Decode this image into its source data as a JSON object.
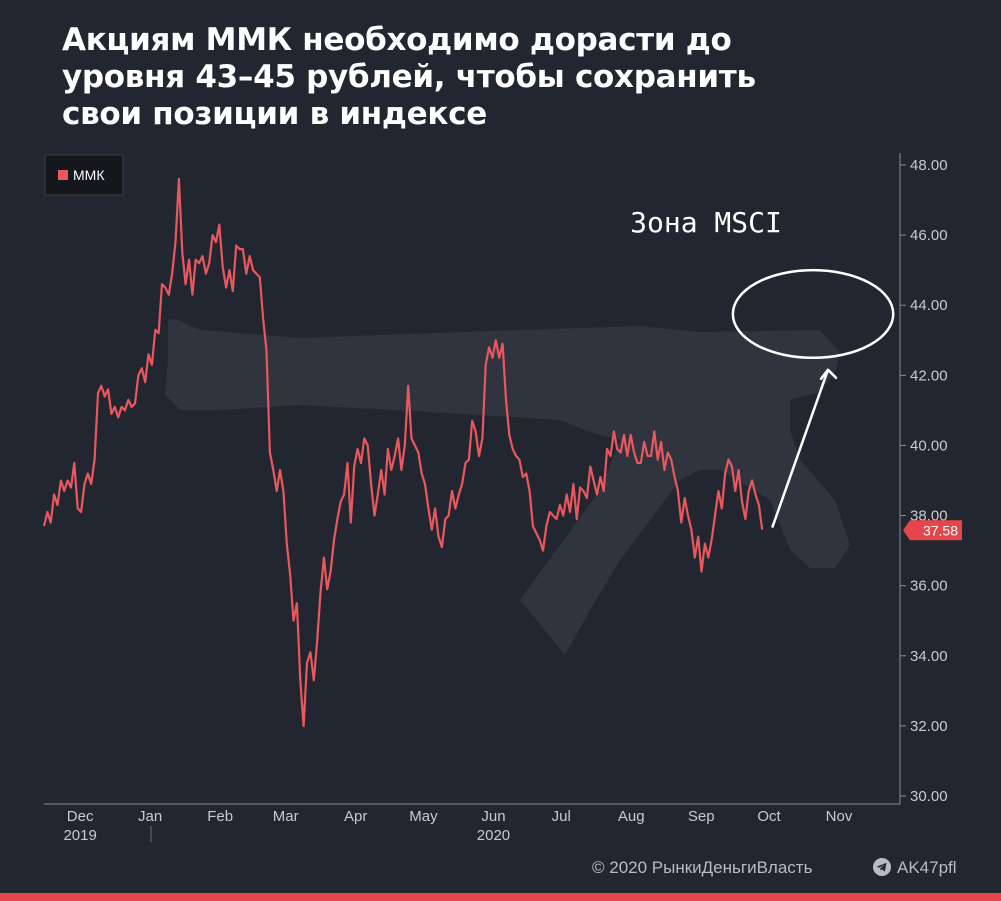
{
  "title_lines": [
    "Акциям ММК необходимо дорасти до",
    "уровня 43–45 рублей, чтобы сохранить",
    "свои позиции в индексе"
  ],
  "annotation": "Зона MSCI",
  "footer": {
    "copyright": "© 2020  РынкиДеньгиВласть",
    "brand": "AK47pfl"
  },
  "colors": {
    "background": "#222630",
    "series": "#e8585e",
    "text": "#ffffff",
    "axis": "#c8cad0",
    "bar": "#e4464b",
    "watermark": "#3a3f4a"
  },
  "chart_data": {
    "type": "line",
    "series": [
      {
        "name": "ММК",
        "last_value": "37.58",
        "values": [
          37.7,
          38.1,
          37.8,
          38.6,
          38.3,
          39.0,
          38.7,
          39.0,
          38.8,
          39.5,
          38.2,
          38.1,
          38.9,
          39.2,
          38.9,
          39.6,
          41.5,
          41.7,
          41.4,
          41.6,
          40.9,
          41.1,
          40.8,
          41.1,
          41.0,
          41.3,
          41.1,
          41.2,
          42.0,
          42.2,
          41.8,
          42.6,
          42.3,
          43.3,
          43.2,
          44.6,
          44.5,
          44.3,
          44.9,
          45.8,
          47.6,
          45.5,
          44.6,
          45.3,
          44.3,
          45.3,
          45.2,
          45.4,
          44.9,
          45.2,
          46.0,
          45.8,
          46.3,
          45.1,
          44.5,
          45.0,
          44.4,
          45.7,
          45.6,
          45.6,
          44.9,
          45.4,
          45.0,
          44.9,
          44.8,
          43.6,
          42.7,
          39.8,
          39.3,
          38.7,
          39.3,
          38.7,
          37.2,
          36.3,
          35.0,
          35.5,
          33.3,
          32.0,
          33.8,
          34.1,
          33.3,
          34.4,
          35.8,
          36.8,
          35.9,
          36.4,
          37.3,
          37.9,
          38.4,
          38.6,
          39.5,
          37.8,
          39.4,
          39.9,
          39.5,
          40.2,
          40.0,
          38.9,
          38.0,
          38.6,
          39.3,
          38.6,
          39.9,
          39.3,
          39.7,
          40.2,
          39.3,
          40.0,
          41.7,
          40.2,
          40.0,
          39.8,
          39.2,
          38.9,
          38.2,
          37.6,
          38.2,
          37.4,
          37.1,
          37.9,
          38.0,
          38.7,
          38.2,
          38.6,
          38.9,
          39.5,
          39.6,
          40.7,
          40.4,
          39.7,
          40.2,
          42.3,
          42.8,
          42.5,
          43.0,
          42.5,
          42.9,
          41.3,
          40.3,
          39.9,
          39.7,
          39.6,
          39.1,
          39.2,
          38.7,
          37.7,
          37.5,
          37.3,
          37.0,
          37.7,
          38.1,
          38.0,
          37.9,
          38.3,
          38.0,
          38.6,
          38.1,
          38.9,
          37.9,
          38.8,
          38.7,
          38.5,
          39.4,
          39.0,
          38.6,
          39.1,
          38.7,
          39.9,
          39.7,
          40.4,
          39.9,
          39.8,
          40.3,
          39.7,
          40.3,
          39.8,
          39.5,
          39.5,
          40.1,
          39.7,
          39.7,
          40.4,
          39.6,
          40.1,
          39.3,
          39.8,
          39.6,
          39.1,
          38.7,
          37.8,
          38.5,
          38.0,
          37.6,
          36.8,
          37.4,
          36.4,
          37.2,
          36.8,
          37.3,
          38.0,
          38.7,
          38.2,
          39.2,
          39.6,
          39.4,
          38.7,
          39.3,
          38.4,
          37.9,
          38.7,
          39.0,
          38.6,
          38.3,
          37.6
        ]
      }
    ],
    "x_range": [
      "2019-11-15",
      "2020-11-28"
    ],
    "x_tick_labels": [
      {
        "label": "Dec",
        "date": "2019-12-01"
      },
      {
        "label": "Jan",
        "date": "2020-01-01"
      },
      {
        "label": "Feb",
        "date": "2020-02-01"
      },
      {
        "label": "Mar",
        "date": "2020-03-01"
      },
      {
        "label": "Apr",
        "date": "2020-04-01"
      },
      {
        "label": "May",
        "date": "2020-05-01"
      },
      {
        "label": "Jun",
        "date": "2020-06-01"
      },
      {
        "label": "Jul",
        "date": "2020-07-01"
      },
      {
        "label": "Aug",
        "date": "2020-08-01"
      },
      {
        "label": "Sep",
        "date": "2020-09-01"
      },
      {
        "label": "Oct",
        "date": "2020-10-01"
      },
      {
        "label": "Nov",
        "date": "2020-11-01"
      }
    ],
    "year_labels": [
      {
        "label": "2019",
        "date": "2019-12-01"
      },
      {
        "label": "2020",
        "date": "2020-06-01"
      }
    ],
    "series_date_range": [
      "2019-11-15",
      "2020-09-28"
    ],
    "y_ticks": [
      "30.00",
      "32.00",
      "34.00",
      "36.00",
      "38.00",
      "40.00",
      "42.00",
      "44.00",
      "46.00",
      "48.00"
    ],
    "ylim": [
      30,
      48
    ],
    "y_axis_position": "right",
    "grid": false,
    "legend": "top-left",
    "zone": {
      "label": "Зона MSCI",
      "y_min": 42.5,
      "y_max": 45.0,
      "from": "2020-09-15",
      "to": "2020-11-25"
    }
  }
}
